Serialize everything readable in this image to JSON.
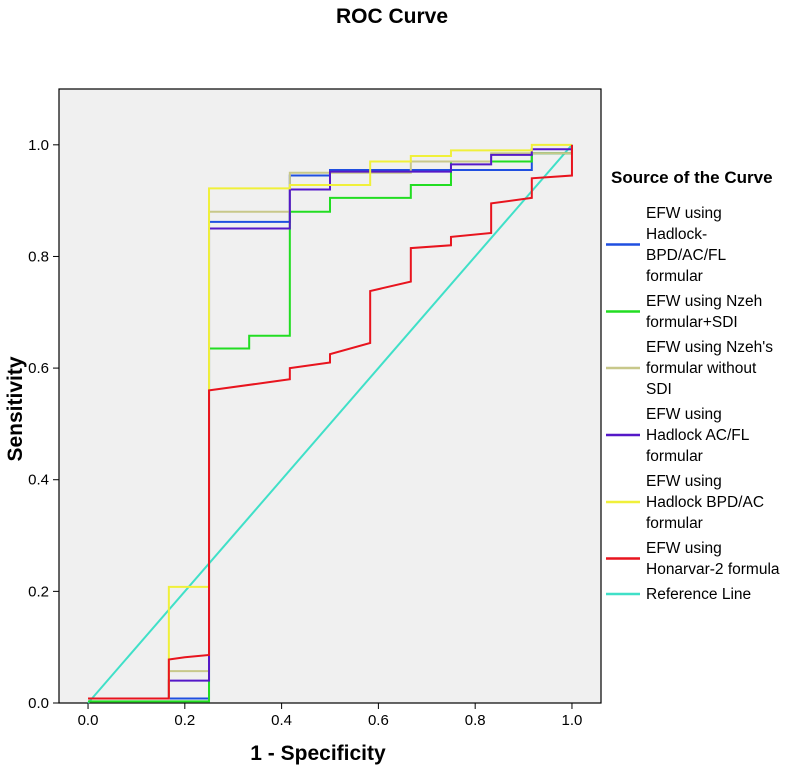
{
  "chart_data": {
    "type": "line",
    "title": "ROC Curve",
    "xlabel": "1 - Specificity",
    "ylabel": "Sensitivity",
    "xlim": [
      -0.06,
      1.06
    ],
    "ylim": [
      0.0,
      1.1
    ],
    "x_ticks": [
      0.0,
      0.2,
      0.4,
      0.6,
      0.8,
      1.0
    ],
    "y_ticks": [
      0.0,
      0.2,
      0.4,
      0.6,
      0.8,
      1.0
    ],
    "x_tick_labels": [
      "0.0",
      "0.2",
      "0.4",
      "0.6",
      "0.8",
      "1.0"
    ],
    "y_tick_labels": [
      "0.0",
      "0.2",
      "0.4",
      "0.6",
      "0.8",
      "1.0"
    ],
    "grid": false,
    "legend_title": "Source of the Curve",
    "legend_position": "right",
    "series": [
      {
        "name": "EFW using Hadlock-BPD/AC/FL formular",
        "legend_lines": [
          "EFW using",
          "Hadlock-",
          "BPD/AC/FL",
          "formular"
        ],
        "color": "#1f4fe0",
        "points": [
          [
            0,
            0.008
          ],
          [
            0.167,
            0.008
          ],
          [
            0.25,
            0.008
          ],
          [
            0.25,
            0.862
          ],
          [
            0.417,
            0.862
          ],
          [
            0.417,
            0.945
          ],
          [
            0.5,
            0.945
          ],
          [
            0.5,
            0.955
          ],
          [
            0.917,
            0.955
          ],
          [
            0.917,
            0.985
          ],
          [
            1,
            0.985
          ],
          [
            1,
            1
          ]
        ]
      },
      {
        "name": "EFW using Nzeh formular+SDI",
        "legend_lines": [
          "EFW using Nzeh",
          "formular+SDI"
        ],
        "color": "#22dd22",
        "points": [
          [
            0,
            0.003
          ],
          [
            0.25,
            0.003
          ],
          [
            0.25,
            0.635
          ],
          [
            0.333,
            0.635
          ],
          [
            0.333,
            0.658
          ],
          [
            0.417,
            0.658
          ],
          [
            0.417,
            0.88
          ],
          [
            0.5,
            0.88
          ],
          [
            0.5,
            0.905
          ],
          [
            0.667,
            0.905
          ],
          [
            0.667,
            0.928
          ],
          [
            0.75,
            0.928
          ],
          [
            0.75,
            0.97
          ],
          [
            0.917,
            0.97
          ],
          [
            0.917,
            0.985
          ],
          [
            1,
            0.985
          ],
          [
            1,
            1
          ]
        ]
      },
      {
        "name": "EFW using Nzeh's formular without SDI",
        "legend_lines": [
          "EFW using Nzeh's",
          "formular without",
          "SDI"
        ],
        "color": "#c8c88a",
        "points": [
          [
            0,
            0.008
          ],
          [
            0.167,
            0.008
          ],
          [
            0.167,
            0.057
          ],
          [
            0.25,
            0.057
          ],
          [
            0.25,
            0.88
          ],
          [
            0.417,
            0.88
          ],
          [
            0.417,
            0.95
          ],
          [
            0.667,
            0.95
          ],
          [
            0.667,
            0.97
          ],
          [
            0.833,
            0.97
          ],
          [
            0.833,
            0.985
          ],
          [
            1,
            0.985
          ],
          [
            1,
            1
          ]
        ]
      },
      {
        "name": "EFW using Hadlock AC/FL formular",
        "legend_lines": [
          "EFW using",
          "Hadlock AC/FL",
          "formular"
        ],
        "color": "#5518c8",
        "points": [
          [
            0,
            0.008
          ],
          [
            0.167,
            0.008
          ],
          [
            0.167,
            0.04
          ],
          [
            0.25,
            0.04
          ],
          [
            0.25,
            0.85
          ],
          [
            0.417,
            0.85
          ],
          [
            0.417,
            0.92
          ],
          [
            0.5,
            0.92
          ],
          [
            0.5,
            0.952
          ],
          [
            0.75,
            0.952
          ],
          [
            0.75,
            0.965
          ],
          [
            0.833,
            0.965
          ],
          [
            0.833,
            0.982
          ],
          [
            0.917,
            0.982
          ],
          [
            0.917,
            0.992
          ],
          [
            1,
            0.992
          ],
          [
            1,
            1
          ]
        ]
      },
      {
        "name": "EFW using Hadlock BPD/AC formular",
        "legend_lines": [
          "EFW using",
          "Hadlock BPD/AC",
          "formular"
        ],
        "color": "#f0f03a",
        "points": [
          [
            0,
            0.008
          ],
          [
            0.167,
            0.008
          ],
          [
            0.167,
            0.208
          ],
          [
            0.25,
            0.208
          ],
          [
            0.25,
            0.922
          ],
          [
            0.417,
            0.922
          ],
          [
            0.417,
            0.928
          ],
          [
            0.583,
            0.928
          ],
          [
            0.583,
            0.97
          ],
          [
            0.667,
            0.97
          ],
          [
            0.667,
            0.98
          ],
          [
            0.75,
            0.98
          ],
          [
            0.75,
            0.99
          ],
          [
            0.917,
            0.99
          ],
          [
            0.917,
            1.0
          ],
          [
            1,
            1.0
          ]
        ]
      },
      {
        "name": "EFW using Honarvar-2 formula",
        "legend_lines": [
          "EFW using",
          "Honarvar-2 formula"
        ],
        "color": "#e8141e",
        "points": [
          [
            0,
            0.008
          ],
          [
            0.167,
            0.008
          ],
          [
            0.167,
            0.078
          ],
          [
            0.2,
            0.082
          ],
          [
            0.25,
            0.086
          ],
          [
            0.25,
            0.56
          ],
          [
            0.417,
            0.58
          ],
          [
            0.417,
            0.6
          ],
          [
            0.5,
            0.61
          ],
          [
            0.5,
            0.625
          ],
          [
            0.583,
            0.645
          ],
          [
            0.583,
            0.738
          ],
          [
            0.667,
            0.755
          ],
          [
            0.667,
            0.815
          ],
          [
            0.75,
            0.82
          ],
          [
            0.75,
            0.835
          ],
          [
            0.833,
            0.842
          ],
          [
            0.833,
            0.895
          ],
          [
            0.917,
            0.905
          ],
          [
            0.917,
            0.94
          ],
          [
            1,
            0.945
          ],
          [
            1,
            1
          ]
        ]
      },
      {
        "name": "Reference Line",
        "legend_lines": [
          "Reference Line"
        ],
        "color": "#40e0c8",
        "points": [
          [
            0,
            0
          ],
          [
            1,
            1
          ]
        ]
      }
    ]
  }
}
